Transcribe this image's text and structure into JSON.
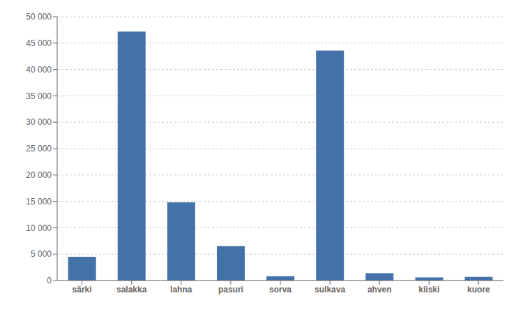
{
  "chart_data": {
    "type": "bar",
    "categories": [
      "särki",
      "salakka",
      "lahna",
      "pasuri",
      "sorva",
      "sulkava",
      "ahven",
      "kiiski",
      "kuore"
    ],
    "values": [
      4500,
      47200,
      14800,
      6500,
      800,
      43600,
      1400,
      600,
      700
    ],
    "color": "#4472a8",
    "ylim": [
      0,
      50000
    ],
    "yticks": [
      0,
      {
        "value": 5000,
        "label": "5 000"
      },
      {
        "value": 10000,
        "label": "10 000"
      },
      {
        "value": 15000,
        "label": "15 000"
      },
      {
        "value": 20000,
        "label": "20 000"
      },
      {
        "value": 25000,
        "label": "25 000"
      },
      {
        "value": 30000,
        "label": "30 000"
      },
      {
        "value": 35000,
        "label": "35 000"
      },
      {
        "value": 40000,
        "label": "40 000"
      },
      {
        "value": 45000,
        "label": "45 000"
      },
      {
        "value": 50000,
        "label": "50 000"
      }
    ],
    "grid": true
  }
}
